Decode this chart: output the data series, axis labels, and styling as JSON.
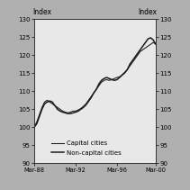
{
  "title_left": "Index",
  "title_right": "Index",
  "ylim": [
    90,
    130
  ],
  "yticks": [
    90,
    95,
    100,
    105,
    110,
    115,
    120,
    125,
    130
  ],
  "xtick_labels": [
    "Mar-88",
    "Mar-92",
    "Mar-96",
    "Mar-00"
  ],
  "fig_bg_color": "#b0b0b0",
  "plot_bg_color": "#e8e8e8",
  "legend": [
    "Capital cities",
    "Non-capital cities"
  ],
  "capital_cities": [
    100.0,
    101.5,
    103.5,
    105.5,
    107.0,
    107.5,
    107.0,
    106.5,
    106.0,
    105.5,
    105.0,
    104.5,
    104.2,
    104.0,
    104.2,
    104.5,
    104.5,
    104.8,
    105.2,
    105.8,
    106.5,
    107.5,
    108.5,
    109.5,
    110.5,
    111.5,
    112.5,
    113.0,
    113.2,
    113.0,
    113.2,
    113.5,
    113.8,
    114.0,
    114.5,
    115.0,
    116.0,
    117.0,
    118.0,
    119.0,
    120.0,
    121.0,
    121.5,
    122.0,
    122.5,
    123.0,
    123.5,
    123.0
  ],
  "non_capital_cities": [
    100.0,
    101.0,
    103.0,
    105.0,
    106.5,
    107.0,
    107.3,
    107.0,
    106.0,
    105.0,
    104.5,
    104.2,
    104.0,
    103.8,
    103.8,
    104.0,
    104.2,
    104.5,
    105.0,
    105.5,
    106.2,
    107.2,
    108.2,
    109.5,
    110.5,
    112.0,
    113.0,
    113.5,
    113.8,
    113.5,
    113.2,
    113.0,
    113.2,
    113.8,
    114.5,
    115.2,
    116.0,
    117.5,
    118.5,
    119.5,
    120.5,
    121.5,
    122.5,
    123.5,
    124.5,
    124.8,
    124.2,
    123.0
  ]
}
